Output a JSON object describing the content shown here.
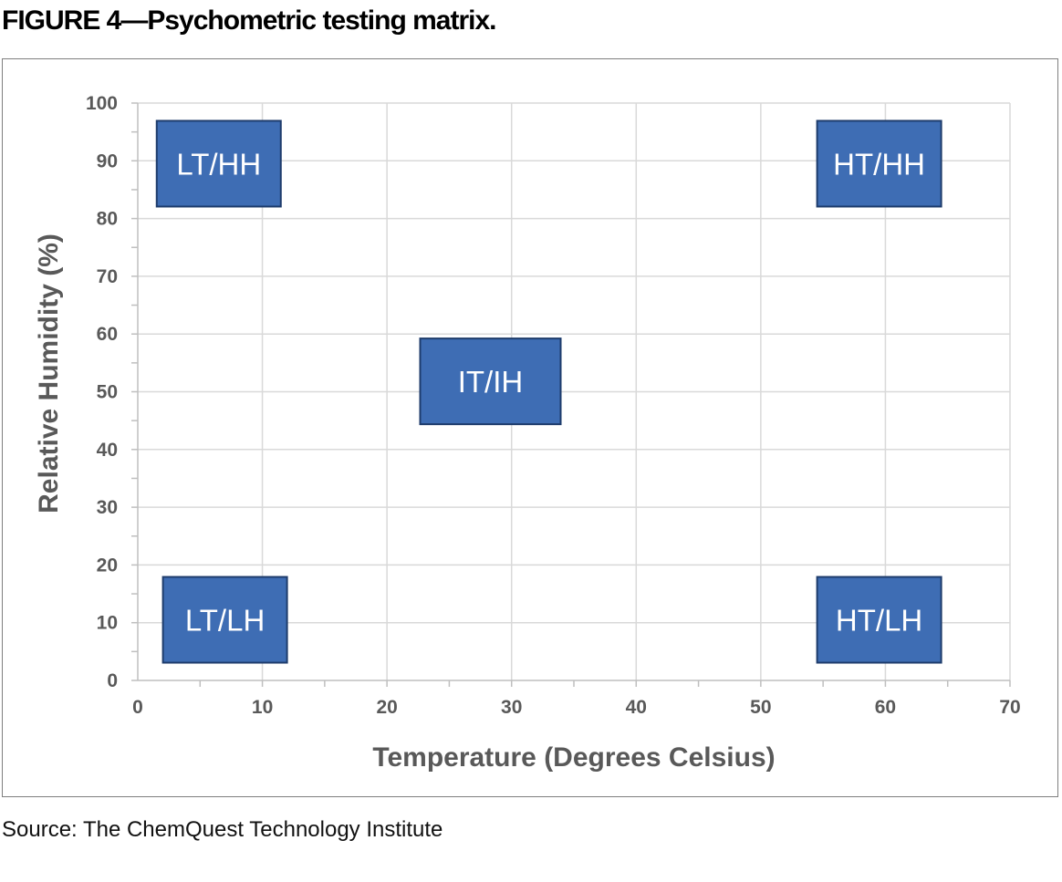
{
  "figure_title": "FIGURE 4—Psychometric testing matrix.",
  "source_note": "Source: The ChemQuest Technology Institute",
  "colors": {
    "box_fill": "#3e6db4",
    "box_border": "#1e3c6c",
    "box_text": "#ffffff",
    "grid": "#d9d9d9",
    "axis": "#bfbfbf",
    "tick_text": "#595959",
    "axis_title": "#595959"
  },
  "chart_data": {
    "type": "scatter",
    "title": "",
    "xlabel": "Temperature (Degrees Celsius)",
    "ylabel": "Relative Humidity (%)",
    "xlim": [
      0,
      70
    ],
    "ylim": [
      0,
      100
    ],
    "x_ticks": [
      "0",
      "10",
      "20",
      "30",
      "40",
      "50",
      "60",
      "70"
    ],
    "y_ticks": [
      "0",
      "10",
      "20",
      "30",
      "40",
      "50",
      "60",
      "70",
      "80",
      "90",
      "100"
    ],
    "grid": true,
    "legend": "none",
    "points": [
      {
        "label": "LT/HH",
        "x": 6.5,
        "y": 89.5
      },
      {
        "label": "HT/HH",
        "x": 59.5,
        "y": 89.5
      },
      {
        "label": "IT/IH",
        "x": 28.3,
        "y": 51.8
      },
      {
        "label": "LT/LH",
        "x": 7,
        "y": 10.5
      },
      {
        "label": "HT/LH",
        "x": 59.5,
        "y": 10.5
      }
    ]
  }
}
